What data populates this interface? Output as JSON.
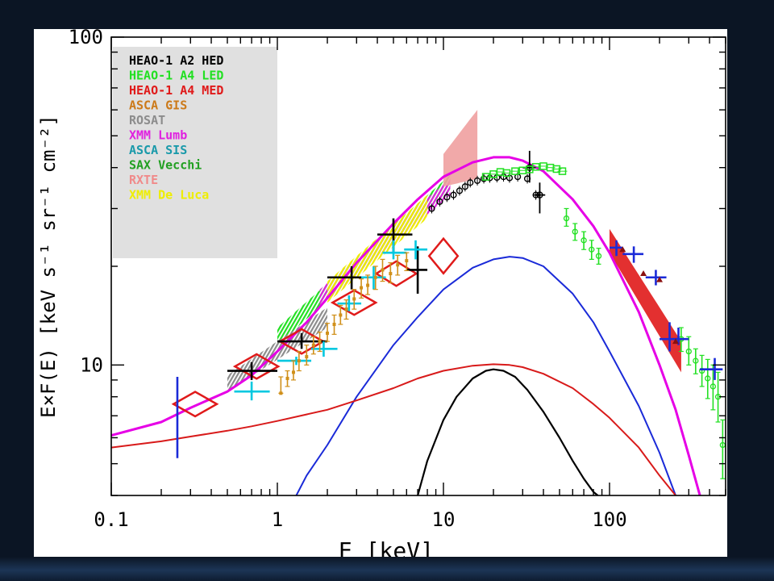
{
  "chart_data": {
    "type": "scatter",
    "xlabel": "E [keV]",
    "ylabel": "E×F(E) [keV s⁻¹ sr⁻¹ cm⁻²]",
    "xscale": "log",
    "yscale": "log",
    "xlim": [
      0.1,
      500
    ],
    "ylim": [
      4,
      100
    ],
    "x_ticks": [
      {
        "v": 0.1,
        "label": "0.1"
      },
      {
        "v": 1,
        "label": "1"
      },
      {
        "v": 10,
        "label": "10"
      },
      {
        "v": 100,
        "label": "100"
      }
    ],
    "y_ticks": [
      {
        "v": 10,
        "label": "10"
      },
      {
        "v": 100,
        "label": "100"
      }
    ],
    "legend_position": "top-left",
    "legend": [
      {
        "label": "HEAO-1 A2 HED",
        "color": "#000000"
      },
      {
        "label": "HEAO-1 A4 LED",
        "color": "#22e022"
      },
      {
        "label": "HEAO-1 A4 MED",
        "color": "#e01a1a"
      },
      {
        "label": "ASCA GIS",
        "color": "#cc7a1a"
      },
      {
        "label": "ROSAT",
        "color": "#8c8c8c"
      },
      {
        "label": "XMM Lumb",
        "color": "#e020e0"
      },
      {
        "label": "ASCA SIS",
        "color": "#1a9aaa"
      },
      {
        "label": "SAX Vecchi",
        "color": "#22a022"
      },
      {
        "label": "RXTE",
        "color": "#f08a8a"
      },
      {
        "label": "XMM De Luca",
        "color": "#eeee00"
      }
    ],
    "curves": [
      {
        "color": "#e600e6",
        "width": 3,
        "points": [
          [
            0.1,
            6.1
          ],
          [
            0.2,
            6.7
          ],
          [
            0.3,
            7.4
          ],
          [
            0.5,
            8.3
          ],
          [
            0.7,
            9.3
          ],
          [
            1,
            11
          ],
          [
            1.5,
            13.5
          ],
          [
            2,
            16
          ],
          [
            3,
            20.5
          ],
          [
            5,
            27
          ],
          [
            7,
            32
          ],
          [
            10,
            37.5
          ],
          [
            15,
            41.5
          ],
          [
            20,
            43
          ],
          [
            25,
            43
          ],
          [
            30,
            42
          ],
          [
            40,
            39
          ],
          [
            60,
            32
          ],
          [
            80,
            26.5
          ],
          [
            100,
            22
          ],
          [
            150,
            14.5
          ],
          [
            200,
            10
          ],
          [
            250,
            7.3
          ],
          [
            300,
            5.3
          ],
          [
            350,
            4
          ]
        ]
      },
      {
        "color": "#1a2ad8",
        "width": 2,
        "points": [
          [
            1.3,
            4
          ],
          [
            1.5,
            4.6
          ],
          [
            2,
            5.7
          ],
          [
            3,
            8
          ],
          [
            5,
            11.5
          ],
          [
            7,
            14
          ],
          [
            10,
            17
          ],
          [
            15,
            19.8
          ],
          [
            20,
            21
          ],
          [
            25,
            21.4
          ],
          [
            30,
            21.2
          ],
          [
            40,
            20
          ],
          [
            60,
            16.5
          ],
          [
            80,
            13.5
          ],
          [
            100,
            11
          ],
          [
            150,
            7.5
          ],
          [
            200,
            5.4
          ],
          [
            250,
            4
          ]
        ]
      },
      {
        "color": "#d81a1a",
        "width": 2,
        "points": [
          [
            0.1,
            5.6
          ],
          [
            0.2,
            5.85
          ],
          [
            0.3,
            6.05
          ],
          [
            0.5,
            6.3
          ],
          [
            0.7,
            6.5
          ],
          [
            1,
            6.75
          ],
          [
            2,
            7.3
          ],
          [
            3,
            7.8
          ],
          [
            5,
            8.5
          ],
          [
            7,
            9.1
          ],
          [
            10,
            9.6
          ],
          [
            15,
            9.95
          ],
          [
            20,
            10.05
          ],
          [
            25,
            10
          ],
          [
            30,
            9.85
          ],
          [
            40,
            9.4
          ],
          [
            60,
            8.5
          ],
          [
            80,
            7.6
          ],
          [
            100,
            6.9
          ],
          [
            150,
            5.6
          ],
          [
            200,
            4.6
          ],
          [
            250,
            4
          ]
        ]
      },
      {
        "color": "#000000",
        "width": 2.2,
        "points": [
          [
            7,
            4
          ],
          [
            8,
            5.1
          ],
          [
            10,
            6.8
          ],
          [
            12,
            8
          ],
          [
            15,
            9.1
          ],
          [
            18,
            9.6
          ],
          [
            20,
            9.7
          ],
          [
            23,
            9.6
          ],
          [
            27,
            9.2
          ],
          [
            32,
            8.4
          ],
          [
            40,
            7.2
          ],
          [
            50,
            6
          ],
          [
            60,
            5.1
          ],
          [
            70,
            4.5
          ],
          [
            80,
            4.1
          ],
          [
            85,
            4
          ]
        ]
      }
    ],
    "bands": [
      {
        "label": "HEAO-1 A4 LED",
        "color": "#22e022",
        "style": "hatch",
        "x1": 1,
        "x2": 11,
        "lower": [
          11.5,
          34
        ],
        "upper": [
          13,
          38
        ]
      },
      {
        "label": "XMM Lumb",
        "color": "#e020e0",
        "style": "hatch",
        "x1": 1.8,
        "x2": 11,
        "lower": [
          15,
          33
        ],
        "upper": [
          17,
          37
        ]
      },
      {
        "label": "XMM De Luca",
        "color": "#eeee00",
        "style": "hatch",
        "x1": 2,
        "x2": 8,
        "lower": [
          15.5,
          28
        ],
        "upper": [
          18,
          33
        ]
      },
      {
        "label": "ROSAT",
        "color": "#8c8c8c",
        "style": "hatch",
        "x1": 0.5,
        "x2": 2,
        "lower": [
          8.3,
          13
        ],
        "upper": [
          9.3,
          15
        ]
      },
      {
        "label": "RXTE",
        "color": "#f0a0a0",
        "style": "fill",
        "x1": 10,
        "x2": 16,
        "lower": [
          35,
          37
        ],
        "upper": [
          44,
          60
        ]
      },
      {
        "label": "HEAO-1 A4 MED",
        "color": "#e01a1a",
        "style": "fill",
        "x1": 100,
        "x2": 270,
        "lower": [
          22,
          9.5
        ],
        "upper": [
          26,
          11.8
        ]
      }
    ],
    "diamonds": [
      {
        "x": 0.32,
        "y": 7.6,
        "rx": 1.35,
        "ry": 1.09,
        "color": "#e01a1a"
      },
      {
        "x": 0.75,
        "y": 9.9,
        "rx": 1.35,
        "ry": 1.09,
        "color": "#e01a1a"
      },
      {
        "x": 1.4,
        "y": 11.8,
        "rx": 1.35,
        "ry": 1.09,
        "color": "#e01a1a"
      },
      {
        "x": 2.9,
        "y": 15.5,
        "rx": 1.35,
        "ry": 1.09,
        "color": "#e01a1a"
      },
      {
        "x": 5.2,
        "y": 19,
        "rx": 1.32,
        "ry": 1.09,
        "color": "#e01a1a"
      },
      {
        "x": 10,
        "y": 21.5,
        "rx": 1.22,
        "ry": 1.13,
        "color": "#e01a1a"
      }
    ],
    "scatter": [
      {
        "label": "HEAO-1 A2 HED",
        "color": "#000000",
        "cross": true,
        "points": [
          [
            0.7,
            9.6,
            0.5,
            1,
            9,
            10.2
          ],
          [
            1.4,
            11.8,
            1,
            2,
            11.2,
            12.5
          ],
          [
            2.8,
            18.5,
            2,
            4,
            17,
            20
          ],
          [
            5,
            25,
            4,
            6.5,
            22,
            28
          ],
          [
            7,
            19.5,
            6,
            8,
            16.5,
            23
          ]
        ]
      },
      {
        "label": "HEAO-1 A2 HED",
        "color": "#000000",
        "cross": false,
        "ring": true,
        "points": [
          [
            8.5,
            30
          ],
          [
            9.5,
            31.5
          ],
          [
            10.5,
            32.5
          ],
          [
            11.5,
            33
          ],
          [
            12.5,
            34
          ],
          [
            13.5,
            35
          ],
          [
            14.5,
            36
          ],
          [
            16,
            36.5
          ],
          [
            17.5,
            37
          ],
          [
            19,
            37.2
          ],
          [
            21,
            37.3
          ],
          [
            23,
            37.5
          ],
          [
            25,
            37.2
          ],
          [
            28,
            37.5
          ],
          [
            32,
            37
          ],
          [
            36,
            33
          ]
        ]
      },
      {
        "label": "HEAO-1 A2 HED",
        "color": "#000000",
        "cross": true,
        "plain": true,
        "points": [
          [
            33,
            40,
            30,
            36,
            36,
            45
          ],
          [
            38,
            33,
            35,
            41,
            29,
            36
          ]
        ]
      },
      {
        "label": "ASCA SIS",
        "color": "#00c8e0",
        "cross": true,
        "points": [
          [
            0.7,
            8.3,
            0.55,
            0.9,
            7.8,
            8.9
          ],
          [
            1.3,
            10.3,
            1,
            1.6,
            10,
            10.6
          ],
          [
            1.9,
            11.2,
            1.6,
            2.3,
            10.6,
            11.8
          ],
          [
            2.7,
            15.4,
            2.3,
            3.2,
            14.6,
            16.3
          ],
          [
            3.8,
            18.5,
            3.2,
            4.5,
            17,
            20
          ],
          [
            5,
            22,
            4.3,
            6,
            21,
            24
          ],
          [
            6.8,
            22.5,
            5.8,
            8,
            21,
            24
          ]
        ]
      },
      {
        "label": "ASCA GIS",
        "color": "#d0901a",
        "errbar": true,
        "points": [
          [
            1.05,
            8.2,
            8.2,
            9.2
          ],
          [
            1.15,
            9.1,
            8.6,
            9.6
          ],
          [
            1.25,
            9.5,
            9,
            10.3
          ],
          [
            1.35,
            10.3,
            9.6,
            11
          ],
          [
            1.5,
            10.6,
            10,
            11.5
          ],
          [
            1.65,
            11.5,
            10.8,
            12.2
          ],
          [
            1.8,
            11.8,
            11,
            12.6
          ],
          [
            2,
            12.5,
            11.8,
            13.4
          ],
          [
            2.2,
            13.3,
            12.4,
            14.2
          ],
          [
            2.4,
            14.2,
            13.3,
            15.2
          ],
          [
            2.6,
            14.8,
            13.8,
            15.8
          ],
          [
            2.9,
            15.9,
            14.8,
            17
          ],
          [
            3.2,
            17.2,
            16,
            18.3
          ],
          [
            3.5,
            17.5,
            16.4,
            18.8
          ],
          [
            3.9,
            18.5,
            17,
            20
          ],
          [
            4.3,
            19.5,
            18,
            21
          ],
          [
            4.8,
            19,
            17.8,
            20.5
          ],
          [
            5.3,
            20.2,
            18.8,
            21.6
          ],
          [
            6,
            20.8,
            19.4,
            22
          ]
        ]
      },
      {
        "label": "HEAO-1 A4 LED",
        "color": "#22e022",
        "box": true,
        "points": [
          [
            18,
            37.5
          ],
          [
            20,
            38.2
          ],
          [
            22,
            38.8
          ],
          [
            24,
            38.5
          ],
          [
            27,
            39
          ],
          [
            30,
            39.2
          ],
          [
            33,
            39.5
          ],
          [
            36,
            40.2
          ],
          [
            40,
            40.4
          ],
          [
            44,
            40
          ],
          [
            48,
            39.6
          ],
          [
            52,
            39
          ]
        ]
      },
      {
        "label": "HEAO-1 A4 LED",
        "color": "#22e022",
        "ring": true,
        "errbar": true,
        "points": [
          [
            55,
            28,
            26.5,
            30
          ],
          [
            62,
            25.5,
            24,
            27
          ],
          [
            70,
            24,
            22.5,
            25.5
          ],
          [
            78,
            22.5,
            21,
            24
          ],
          [
            86,
            21.5,
            20.3,
            22.7
          ],
          [
            270,
            12,
            11,
            13
          ],
          [
            300,
            11,
            10,
            12.2
          ],
          [
            330,
            10.3,
            9.4,
            11.2
          ],
          [
            360,
            9.6,
            8.6,
            10.7
          ],
          [
            390,
            9.1,
            7.9,
            10.4
          ],
          [
            420,
            8.6,
            7.3,
            10
          ],
          [
            450,
            8,
            6.7,
            9.5
          ],
          [
            480,
            5.7,
            4.5,
            6.8
          ]
        ]
      },
      {
        "label": "HEAO-1 A4 MED",
        "color": "#1a2ad8",
        "cross": true,
        "points": [
          [
            0.25,
            6.9,
            0.25,
            0.25,
            5.2,
            9.2
          ],
          [
            110,
            22.8,
            100,
            120,
            21.5,
            24
          ],
          [
            140,
            21.8,
            120,
            160,
            20.5,
            23
          ],
          [
            190,
            18.5,
            165,
            220,
            17.5,
            19.5
          ],
          [
            230,
            12,
            200,
            260,
            11,
            13.5
          ],
          [
            260,
            12,
            240,
            300,
            11.5,
            13
          ],
          [
            430,
            9.7,
            350,
            480,
            9,
            10.5
          ]
        ]
      },
      {
        "label": "HEAO-1 A4 MED",
        "color": "#8a1010",
        "tri": true,
        "points": [
          [
            120,
            22.5
          ],
          [
            160,
            19
          ],
          [
            200,
            18.2
          ],
          [
            250,
            11.8
          ]
        ]
      }
    ]
  }
}
